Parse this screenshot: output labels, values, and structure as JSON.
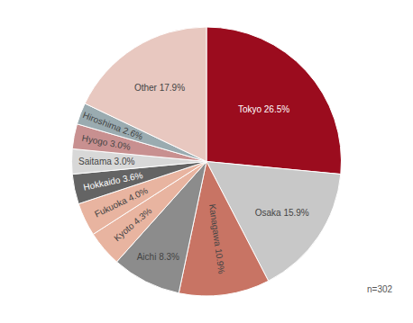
{
  "chart_data": {
    "type": "pie",
    "categories": [
      "Tokyo",
      "Osaka",
      "Kanagawa",
      "Aichi",
      "Kyoto",
      "Fukuoka",
      "Hokkaido",
      "Saitama",
      "Hyogo",
      "Hiroshima",
      "Other"
    ],
    "values": [
      26.5,
      15.9,
      10.9,
      8.3,
      4.3,
      4.0,
      3.6,
      3.0,
      3.0,
      2.6,
      17.9
    ],
    "value_labels": [
      "Tokyo 26.5%",
      "Osaka 15.9%",
      "Kanagawa 10.9%",
      "Aichi 8.3%",
      "Kyoto 4.3%",
      "Fukuoka 4.0%",
      "Hokkaido 3.6%",
      "Saitama 3.0%",
      "Hyogo 3.0%",
      "Hiroshima 2.6%",
      "Other 17.9%"
    ],
    "colors": [
      "#9b0c1e",
      "#c8c8c8",
      "#c87464",
      "#8c8c8c",
      "#e8b4a0",
      "#e8b4a0",
      "#646464",
      "#d8d8d8",
      "#c89090",
      "#9aabb0",
      "#e8c8c0"
    ],
    "annotations": [
      "n=302"
    ]
  }
}
